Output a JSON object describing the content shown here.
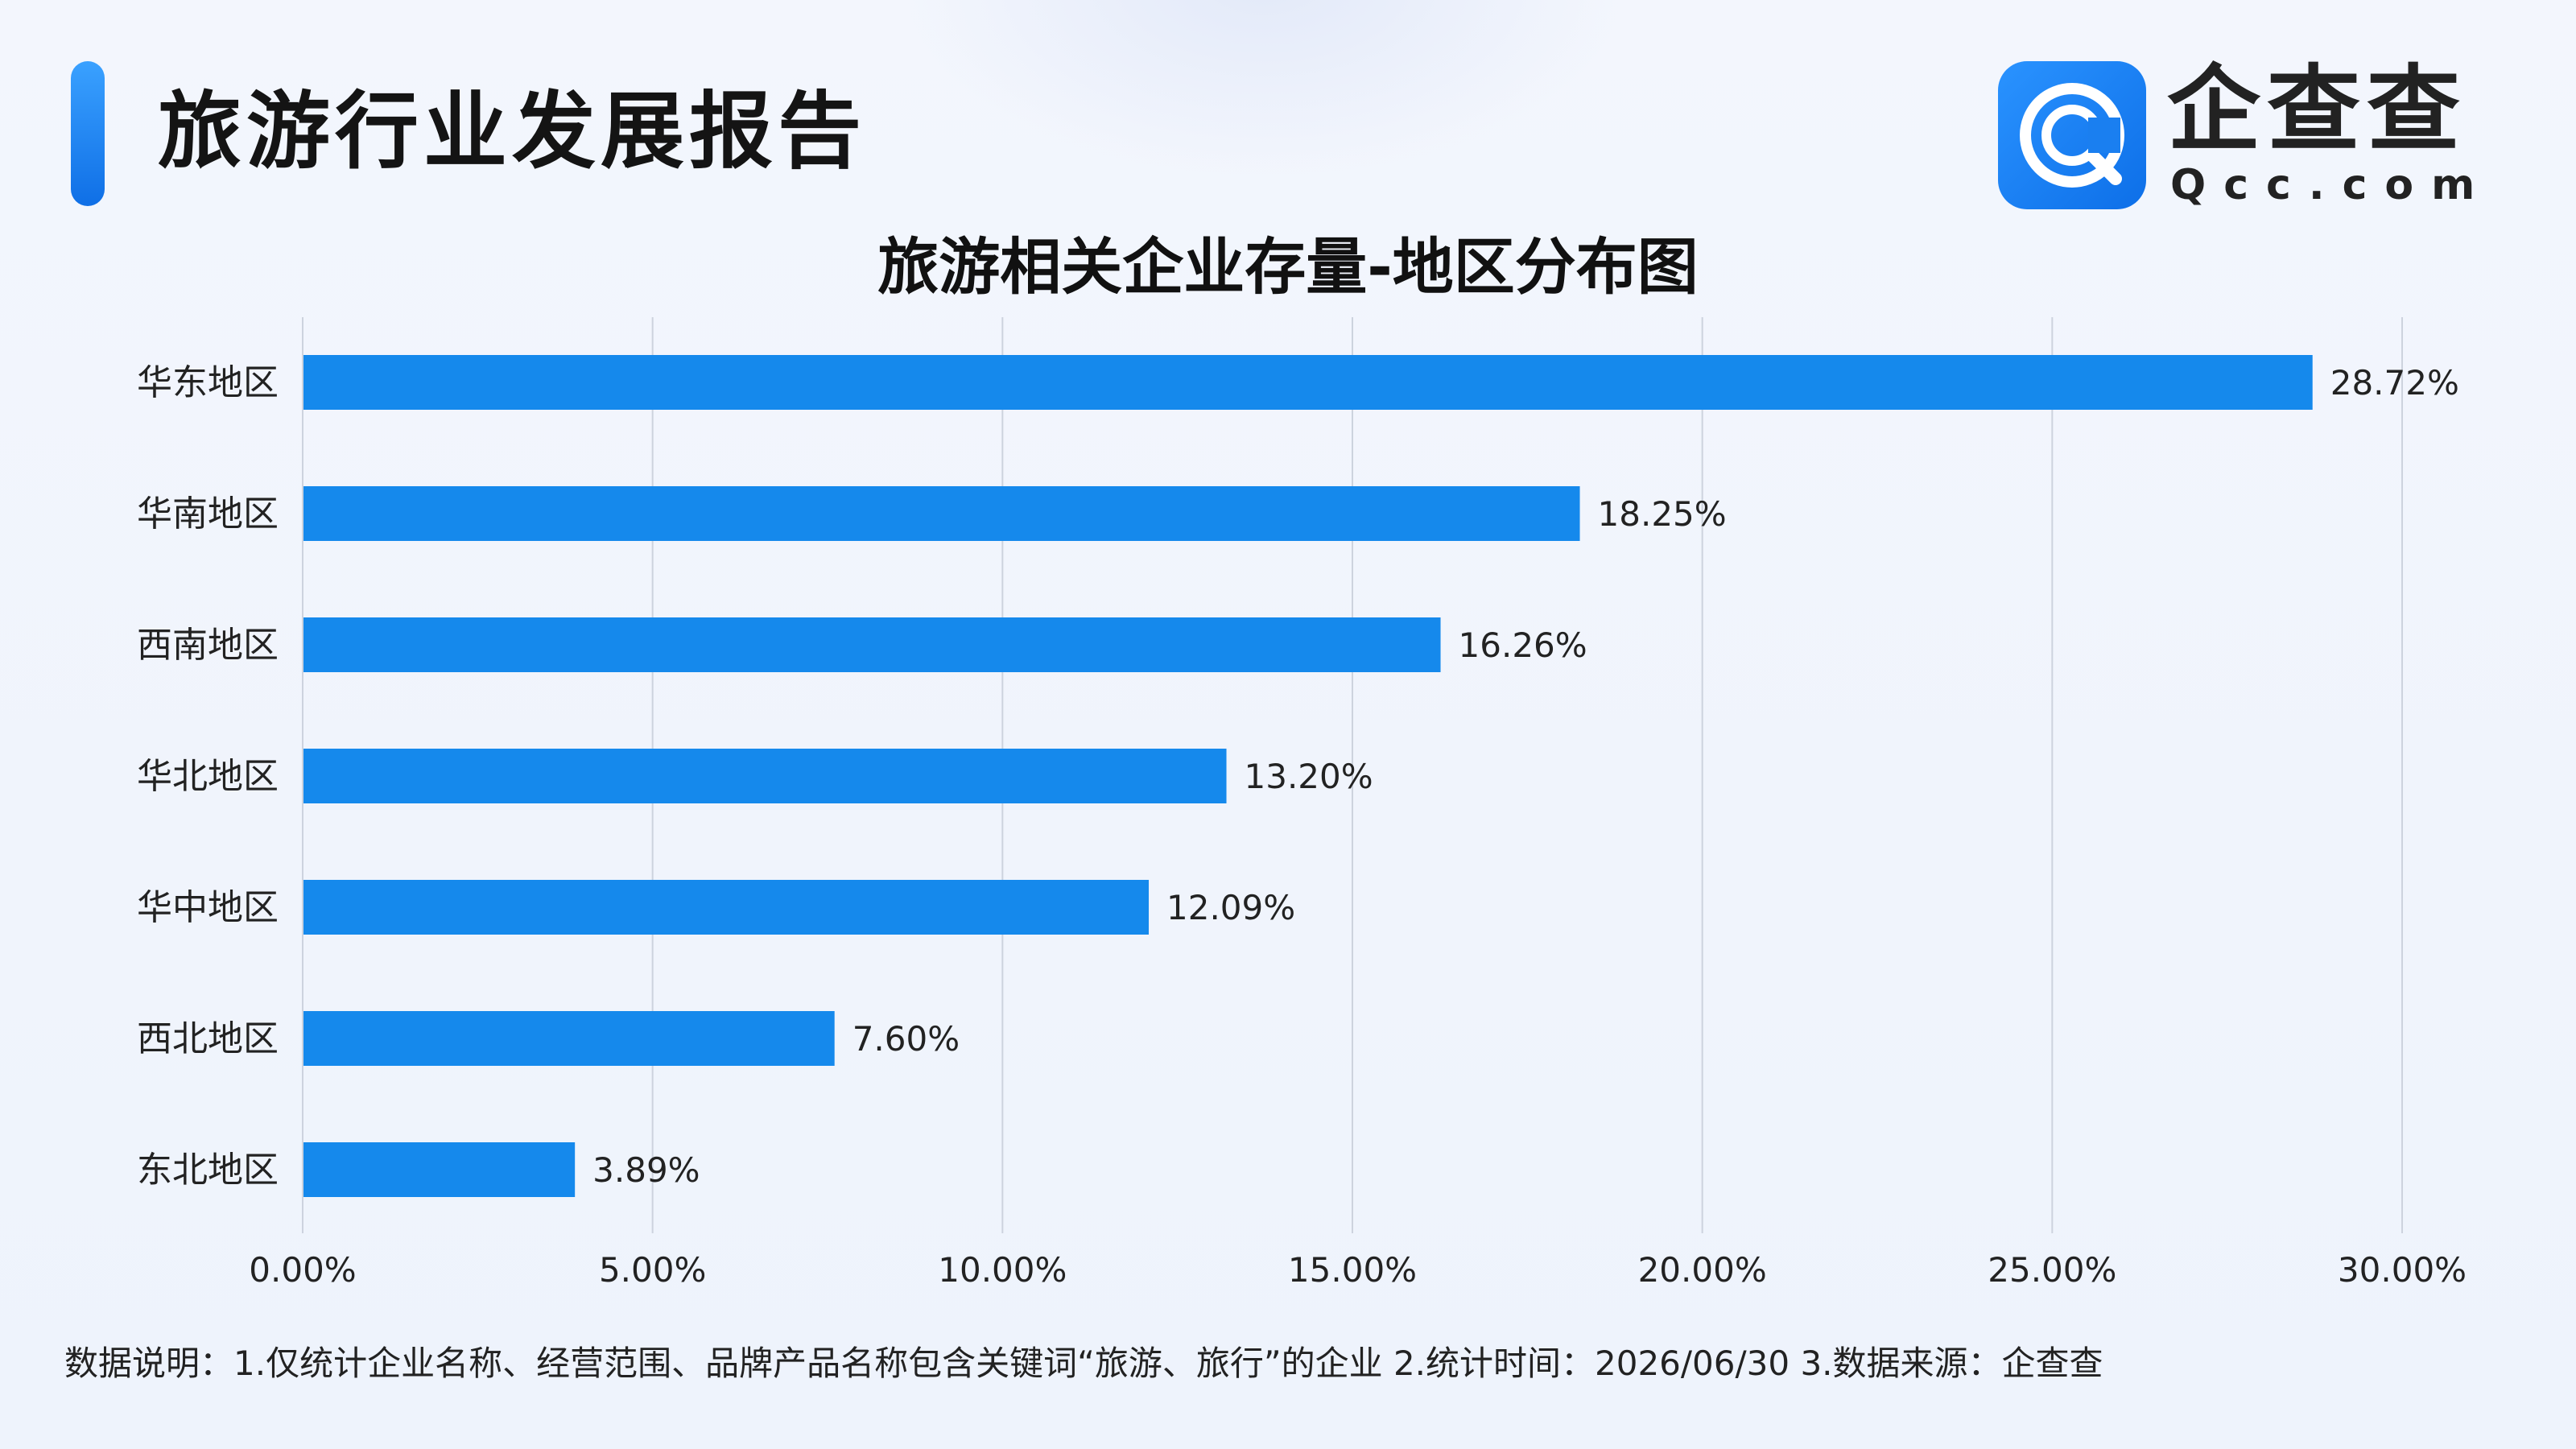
{
  "header": {
    "title": "旅游行业发展报告"
  },
  "logo": {
    "name": "企查查",
    "domain": "Qcc.com",
    "icon": "qcc-logo-icon",
    "color": "#1383ef"
  },
  "chart_data": {
    "type": "bar",
    "orientation": "horizontal",
    "title": "旅游相关企业存量-地区分布图",
    "categories": [
      "华东地区",
      "华南地区",
      "西南地区",
      "华北地区",
      "华中地区",
      "西北地区",
      "东北地区"
    ],
    "values": [
      28.72,
      18.25,
      16.26,
      13.2,
      12.09,
      7.6,
      3.89
    ],
    "value_labels": [
      "28.72%",
      "18.25%",
      "16.26%",
      "13.20%",
      "12.09%",
      "7.60%",
      "3.89%"
    ],
    "xlim": [
      0,
      30
    ],
    "x_ticks": [
      0,
      5,
      10,
      15,
      20,
      25,
      30
    ],
    "x_tick_labels": [
      "0.00%",
      "5.00%",
      "10.00%",
      "15.00%",
      "20.00%",
      "25.00%",
      "30.00%"
    ],
    "grid": "vertical",
    "bar_color": "#1589ec",
    "grid_color": "#cdd3de"
  },
  "footer": {
    "note": "数据说明：1.仅统计企业名称、经营范围、品牌产品名称包含关键词“旅游、旅行”的企业   2.统计时间：2026/06/30    3.数据来源：企查查"
  }
}
